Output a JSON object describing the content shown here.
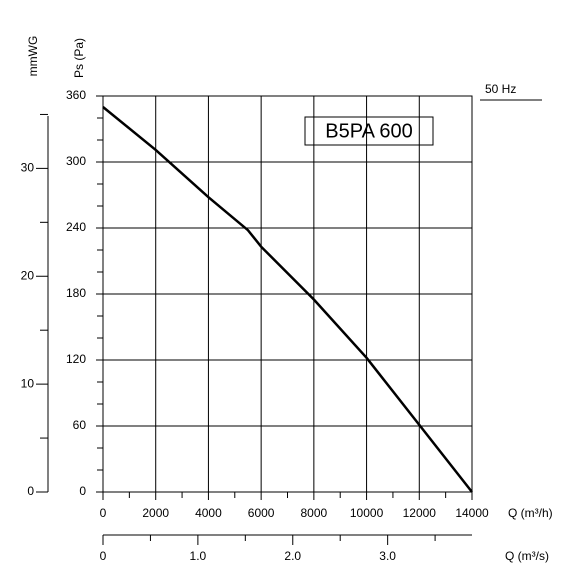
{
  "chart_data": {
    "type": "line",
    "title": "B5PA 600",
    "x_label": "Q (m³/h)",
    "y_label": "Ps (Pa)",
    "y2_label": "mmWG",
    "x2_label": "Q (m³/s)",
    "series": [
      {
        "name": "50 Hz",
        "color": "#000000",
        "x": [
          0,
          2000,
          4000,
          5500,
          6000,
          8000,
          10000,
          12000,
          14000
        ],
        "values": [
          350,
          311,
          268,
          238,
          223,
          175,
          122,
          61,
          0
        ]
      }
    ],
    "xlim": [
      0,
      14000
    ],
    "xticks": [
      0,
      2000,
      4000,
      6000,
      8000,
      10000,
      12000,
      14000
    ],
    "xminorticks": [
      1000,
      3000,
      5000,
      7000,
      9000,
      11000,
      13000
    ],
    "ylim": [
      0,
      360
    ],
    "yticks": [
      0,
      60,
      120,
      180,
      240,
      300,
      360
    ],
    "yminorticks": [
      20,
      40,
      80,
      100,
      140,
      160,
      200,
      220,
      260,
      280,
      320,
      340
    ],
    "y2lim": [
      0,
      36.71
    ],
    "y2ticks": [
      0,
      10,
      20,
      30
    ],
    "y2minorticks": [
      5,
      15,
      25,
      35
    ],
    "x2lim": [
      0,
      3.889
    ],
    "x2ticks": [
      0,
      {
        "value": 1,
        "label": "1.0"
      },
      {
        "value": 2,
        "label": "2.0"
      },
      {
        "value": 3,
        "label": "3.0"
      }
    ],
    "x2minorticks": [
      0.5,
      1.5,
      2.5,
      3.5
    ],
    "grid": true
  }
}
